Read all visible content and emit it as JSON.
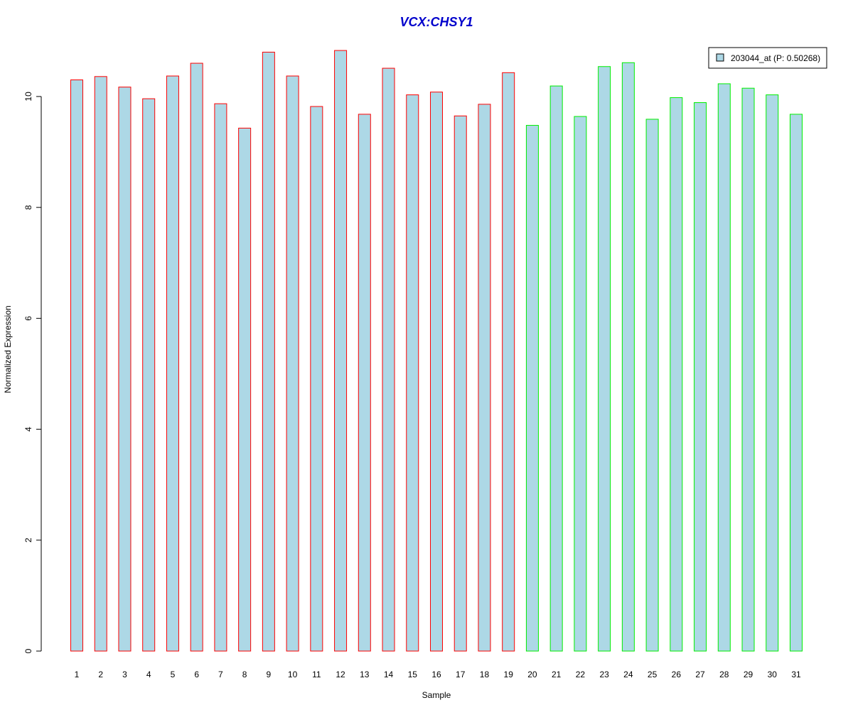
{
  "chart_data": {
    "type": "bar",
    "title": "VCX:CHSY1",
    "xlabel": "Sample",
    "ylabel": "Normalized Expression",
    "categories": [
      "1",
      "2",
      "3",
      "4",
      "5",
      "6",
      "7",
      "8",
      "9",
      "10",
      "11",
      "12",
      "13",
      "14",
      "15",
      "16",
      "17",
      "18",
      "19",
      "20",
      "21",
      "22",
      "23",
      "24",
      "25",
      "26",
      "27",
      "28",
      "29",
      "30",
      "31"
    ],
    "series": [
      {
        "name": "203044_at (P: 0.50268)",
        "values": [
          10.3,
          10.36,
          10.17,
          9.96,
          10.37,
          10.6,
          9.87,
          9.43,
          10.8,
          10.37,
          9.82,
          10.83,
          9.68,
          10.51,
          10.03,
          10.08,
          9.65,
          9.86,
          10.43,
          9.48,
          10.19,
          9.64,
          10.54,
          10.61,
          9.59,
          9.98,
          9.89,
          10.23,
          10.15,
          10.03,
          9.68
        ]
      }
    ],
    "groups": [
      {
        "from": 1,
        "to": 19,
        "border_color": "#ff0000"
      },
      {
        "from": 20,
        "to": 31,
        "border_color": "#00ee00"
      }
    ],
    "bar_fill": "#add8e6",
    "title_color": "#0000cc",
    "yticks": [
      0,
      2,
      4,
      6,
      8,
      10
    ],
    "ylim": [
      0,
      11.1
    ],
    "grid": false,
    "legend_position": "top-right"
  }
}
